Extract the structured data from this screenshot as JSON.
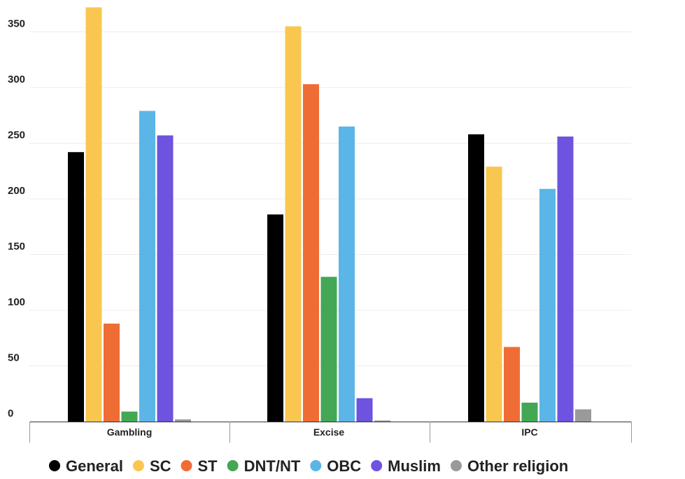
{
  "chart_data": {
    "type": "bar",
    "categories": [
      "Gambling",
      "Excise",
      "IPC"
    ],
    "series": [
      {
        "name": "General",
        "color": "#000000",
        "values": [
          242,
          186,
          258
        ]
      },
      {
        "name": "SC",
        "color": "#f9c74f",
        "values": [
          372,
          355,
          229
        ]
      },
      {
        "name": "ST",
        "color": "#ef6c35",
        "values": [
          88,
          303,
          67
        ]
      },
      {
        "name": "DNT/NT",
        "color": "#43a756",
        "values": [
          9,
          130,
          17
        ]
      },
      {
        "name": "OBC",
        "color": "#5bb5e6",
        "values": [
          279,
          265,
          209
        ]
      },
      {
        "name": "Muslim",
        "color": "#6e52e0",
        "values": [
          257,
          21,
          256
        ]
      },
      {
        "name": "Other religion",
        "color": "#9a9a9a",
        "values": [
          2,
          1,
          11
        ]
      }
    ],
    "y_ticks": [
      "0",
      "50",
      "100",
      "150",
      "200",
      "250",
      "300",
      "350"
    ],
    "ylim": [
      0,
      375
    ],
    "grid": true,
    "legend_position": "bottom",
    "title": "",
    "xlabel": "",
    "ylabel": ""
  }
}
